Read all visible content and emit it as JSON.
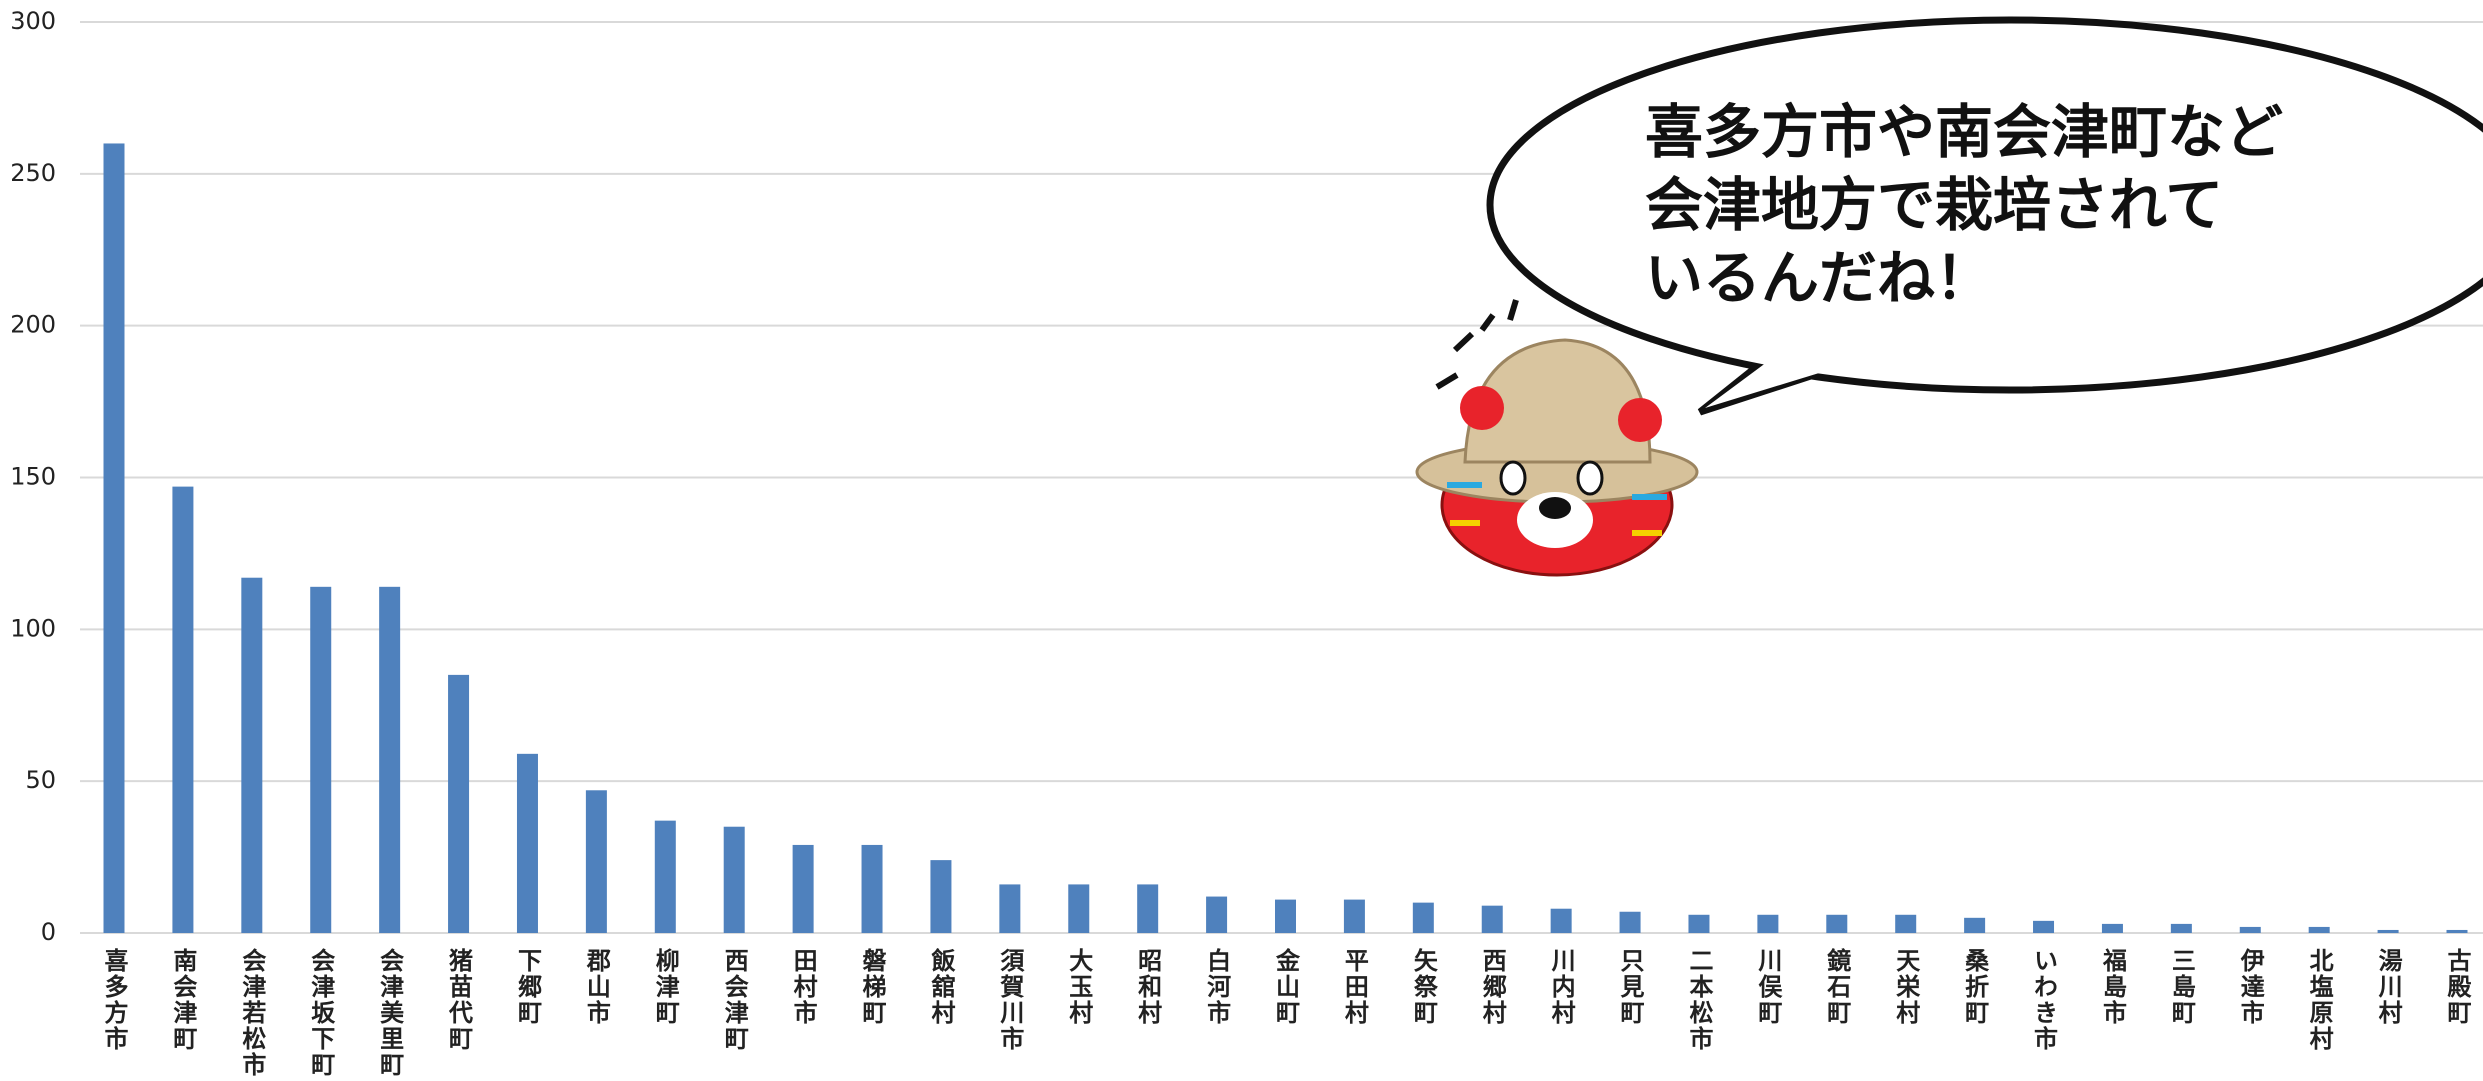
{
  "chart_data": {
    "type": "bar",
    "categories": [
      "喜多方市",
      "南会津町",
      "会津若松市",
      "会津坂下町",
      "会津美里町",
      "猪苗代町",
      "下郷町",
      "郡山市",
      "柳津町",
      "西会津町",
      "田村市",
      "磐梯町",
      "飯舘村",
      "須賀川市",
      "大玉村",
      "昭和村",
      "白河市",
      "金山町",
      "平田村",
      "矢祭町",
      "西郷村",
      "川内村",
      "只見町",
      "二本松市",
      "川俣町",
      "鏡石町",
      "天栄村",
      "桑折町",
      "いわき市",
      "福島市",
      "三島町",
      "伊達市",
      "北塩原村",
      "湯川村",
      "古殿町"
    ],
    "values": [
      260,
      147,
      117,
      114,
      114,
      85,
      59,
      47,
      37,
      35,
      29,
      29,
      24,
      16,
      16,
      16,
      12,
      11,
      11,
      10,
      9,
      8,
      7,
      6,
      6,
      6,
      6,
      5,
      4,
      3,
      3,
      2,
      2,
      1,
      1
    ],
    "color": "#4f81bd",
    "ylim": [
      0,
      300
    ],
    "yticks": [
      0,
      50,
      100,
      150,
      200,
      250,
      300
    ],
    "grid": true,
    "annotation": [
      "喜多方市や南会津町など",
      "会津地方で栽培されて",
      "いるんだね！"
    ]
  }
}
